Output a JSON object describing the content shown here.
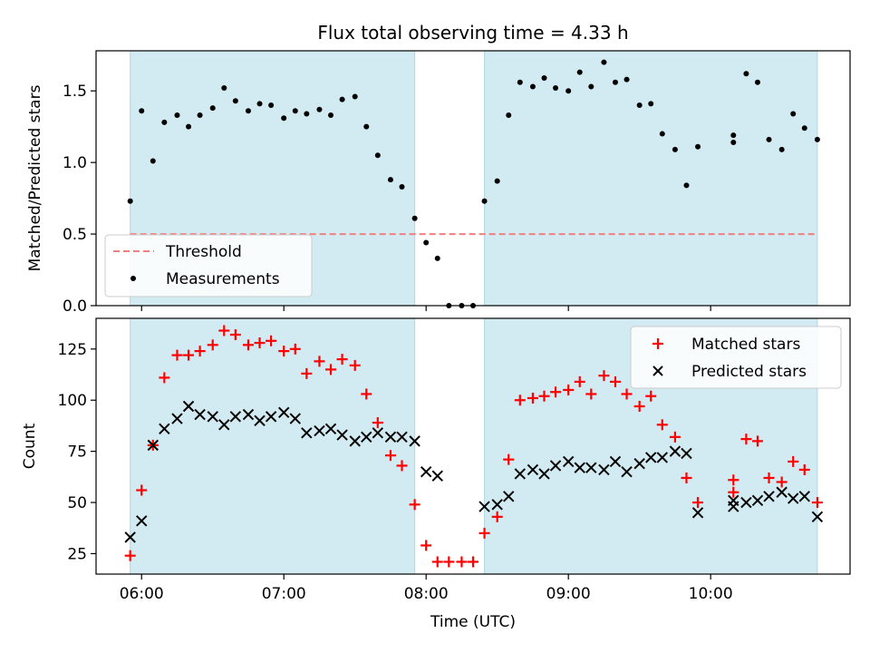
{
  "figure": {
    "title": "Flux total observing time = 4.33 h"
  },
  "chart_data": [
    {
      "type": "scatter",
      "panel": "top",
      "ylabel": "Matched/Predicted stars",
      "ylim": [
        0,
        1.78
      ],
      "yticks": [
        0.0,
        0.5,
        1.0,
        1.5
      ],
      "ytick_labels": [
        "0.0",
        "0.5",
        "1.0",
        "1.5"
      ],
      "xlim": [
        5.68,
        10.98
      ],
      "threshold": {
        "name": "Threshold",
        "value": 0.5,
        "color": "#f08080"
      },
      "shaded_intervals": [
        [
          5.92,
          7.92
        ],
        [
          8.41,
          10.75
        ]
      ],
      "shade_color": "#add8e6",
      "legend": {
        "position": "lower-left",
        "entries": [
          "Threshold",
          "Measurements"
        ]
      },
      "series": [
        {
          "name": "Measurements",
          "color": "#000000",
          "x": [
            5.92,
            6.0,
            6.08,
            6.16,
            6.25,
            6.33,
            6.41,
            6.5,
            6.58,
            6.66,
            6.75,
            6.83,
            6.91,
            7.0,
            7.08,
            7.16,
            7.25,
            7.33,
            7.41,
            7.5,
            7.58,
            7.66,
            7.75,
            7.83,
            7.92,
            8.0,
            8.08,
            8.16,
            8.25,
            8.33,
            8.41,
            8.5,
            8.58,
            8.66,
            8.75,
            8.83,
            8.91,
            9.0,
            9.08,
            9.16,
            9.25,
            9.33,
            9.41,
            9.5,
            9.58,
            9.66,
            9.75,
            9.83,
            9.91,
            10.16,
            10.16,
            10.25,
            10.33,
            10.41,
            10.5,
            10.58,
            10.66,
            10.75
          ],
          "y": [
            0.73,
            1.36,
            1.01,
            1.28,
            1.33,
            1.25,
            1.33,
            1.38,
            1.52,
            1.43,
            1.36,
            1.41,
            1.4,
            1.31,
            1.36,
            1.34,
            1.37,
            1.33,
            1.44,
            1.46,
            1.25,
            1.05,
            0.88,
            0.83,
            0.61,
            0.44,
            0.33,
            0.0,
            0.0,
            0.0,
            0.73,
            0.87,
            1.33,
            1.56,
            1.53,
            1.59,
            1.52,
            1.5,
            1.63,
            1.53,
            1.7,
            1.56,
            1.58,
            1.4,
            1.41,
            1.2,
            1.09,
            0.84,
            1.11,
            1.14,
            1.19,
            1.62,
            1.56,
            1.16,
            1.09,
            1.34,
            1.24,
            1.16
          ]
        }
      ]
    },
    {
      "type": "scatter",
      "panel": "bottom",
      "xlabel": "Time (UTC)",
      "ylabel": "Count",
      "ylim": [
        15,
        140
      ],
      "yticks": [
        25,
        50,
        75,
        100,
        125
      ],
      "ytick_labels": [
        "25",
        "50",
        "75",
        "100",
        "125"
      ],
      "xlim": [
        5.68,
        10.98
      ],
      "xticks": [
        6,
        7,
        8,
        9,
        10
      ],
      "xtick_labels": [
        "06:00",
        "07:00",
        "08:00",
        "09:00",
        "10:00"
      ],
      "shaded_intervals": [
        [
          5.92,
          7.92
        ],
        [
          8.41,
          10.75
        ]
      ],
      "shade_color": "#add8e6",
      "legend": {
        "position": "upper-right",
        "entries": [
          "Matched stars",
          "Predicted stars"
        ]
      },
      "series": [
        {
          "name": "Matched stars",
          "marker": "plus",
          "color": "#ff0000",
          "x": [
            5.92,
            6.0,
            6.08,
            6.16,
            6.25,
            6.33,
            6.41,
            6.5,
            6.58,
            6.66,
            6.75,
            6.83,
            6.91,
            7.0,
            7.08,
            7.16,
            7.25,
            7.33,
            7.41,
            7.5,
            7.58,
            7.66,
            7.75,
            7.83,
            7.92,
            8.0,
            8.08,
            8.16,
            8.25,
            8.33,
            8.41,
            8.5,
            8.58,
            8.66,
            8.75,
            8.83,
            8.91,
            9.0,
            9.08,
            9.16,
            9.25,
            9.33,
            9.41,
            9.5,
            9.58,
            9.66,
            9.75,
            9.83,
            9.91,
            10.16,
            10.16,
            10.25,
            10.33,
            10.41,
            10.5,
            10.58,
            10.66,
            10.75
          ],
          "y": [
            24,
            56,
            78,
            111,
            122,
            122,
            124,
            127,
            134,
            132,
            127,
            128,
            129,
            124,
            125,
            113,
            119,
            115,
            120,
            117,
            103,
            89,
            73,
            68,
            49,
            29,
            21,
            21,
            21,
            21,
            35,
            43,
            71,
            100,
            101,
            102,
            104,
            105,
            109,
            103,
            112,
            109,
            103,
            97,
            102,
            88,
            82,
            62,
            50,
            55,
            61,
            81,
            80,
            62,
            60,
            70,
            66,
            50
          ]
        },
        {
          "name": "Predicted stars",
          "marker": "x",
          "color": "#000000",
          "x": [
            5.92,
            6.0,
            6.08,
            6.16,
            6.25,
            6.33,
            6.41,
            6.5,
            6.58,
            6.66,
            6.75,
            6.83,
            6.91,
            7.0,
            7.08,
            7.16,
            7.25,
            7.33,
            7.41,
            7.5,
            7.58,
            7.66,
            7.75,
            7.83,
            7.92,
            8.0,
            8.08,
            8.41,
            8.5,
            8.58,
            8.66,
            8.75,
            8.83,
            8.91,
            9.0,
            9.08,
            9.16,
            9.25,
            9.33,
            9.41,
            9.5,
            9.58,
            9.66,
            9.75,
            9.83,
            9.91,
            10.16,
            10.16,
            10.25,
            10.33,
            10.41,
            10.5,
            10.58,
            10.66,
            10.75
          ],
          "y": [
            33,
            41,
            78,
            86,
            91,
            97,
            93,
            92,
            88,
            92,
            93,
            90,
            92,
            94,
            91,
            84,
            85,
            86,
            83,
            80,
            82,
            84,
            82,
            82,
            80,
            65,
            63,
            48,
            49,
            53,
            64,
            66,
            64,
            68,
            70,
            67,
            67,
            66,
            70,
            65,
            69,
            72,
            72,
            75,
            74,
            45,
            48,
            51,
            50,
            51,
            53,
            55,
            52,
            53,
            43
          ]
        }
      ]
    }
  ]
}
